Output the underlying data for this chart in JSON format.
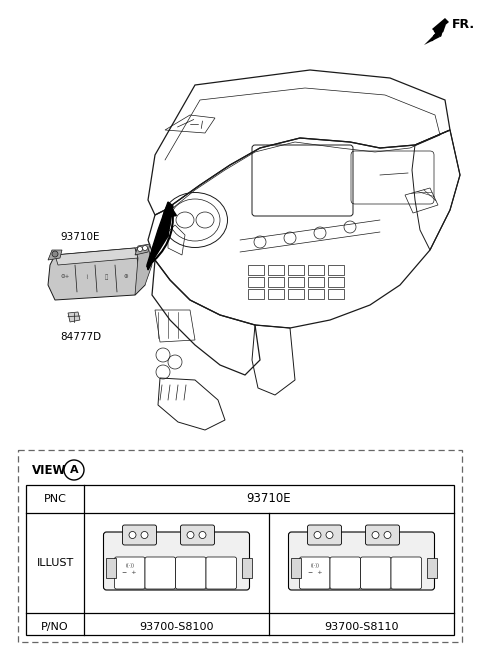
{
  "background_color": "#ffffff",
  "fig_width": 4.8,
  "fig_height": 6.56,
  "dpi": 100,
  "fr_label": "FR.",
  "label_93710E": "93710E",
  "label_84777D": "84777D",
  "pnc_value": "93710E",
  "pno_left": "93700-S8100",
  "pno_right": "93700-S8110",
  "view_label": "VIEW",
  "view_circle_letter": "A"
}
